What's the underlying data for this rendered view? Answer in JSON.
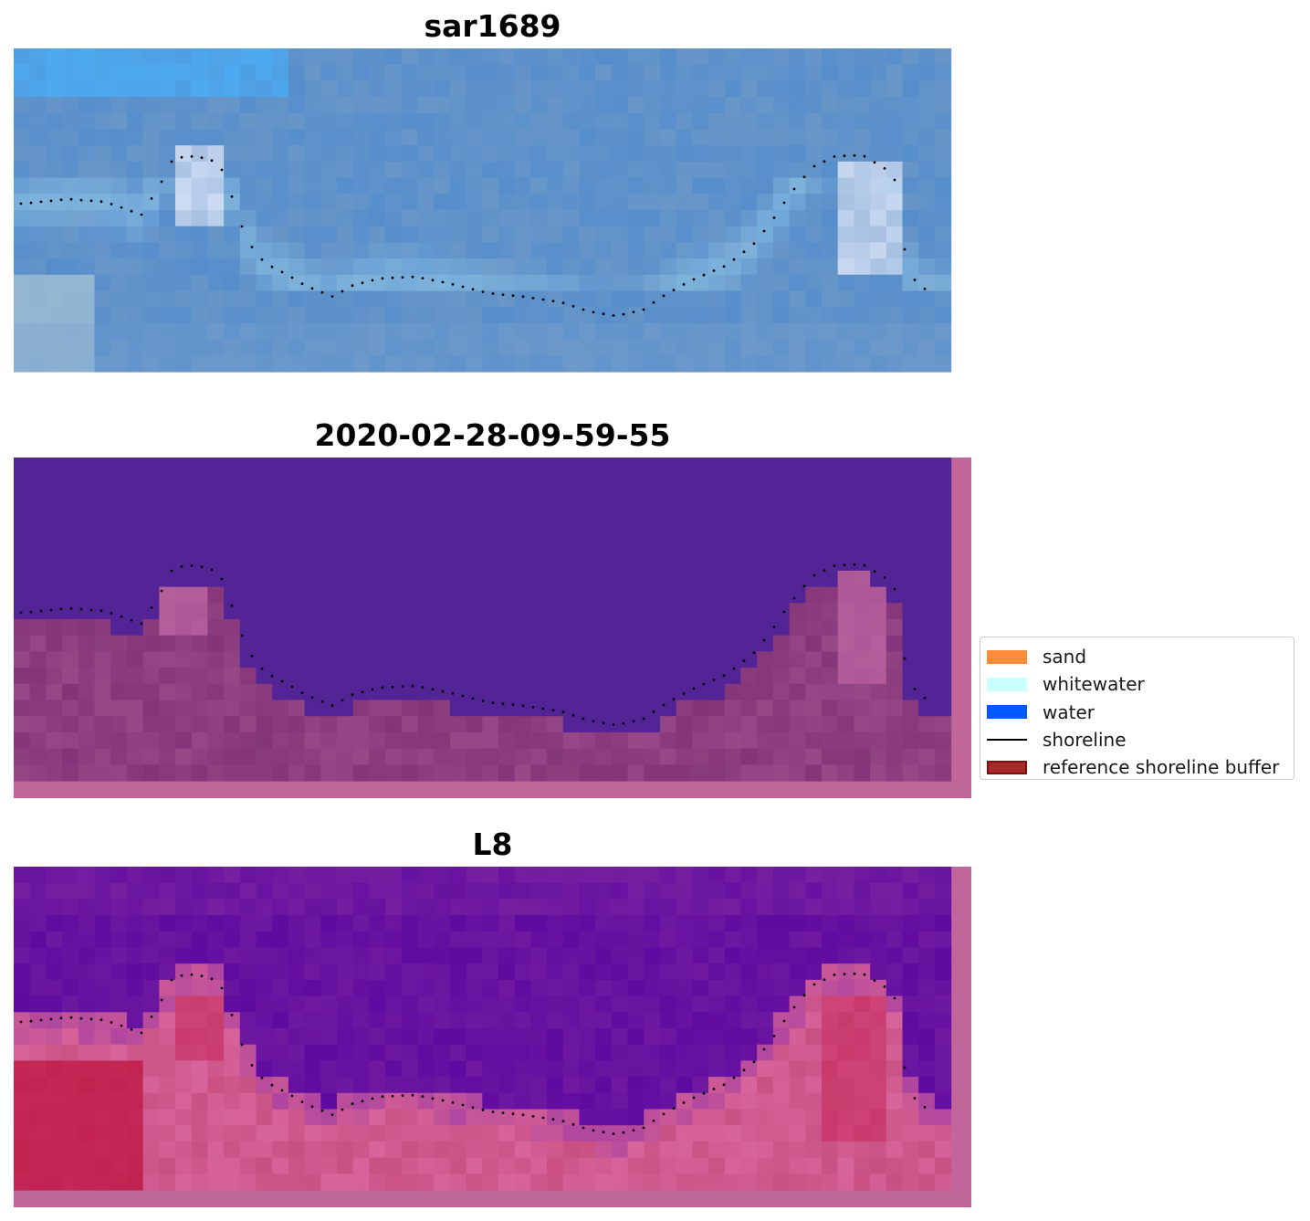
{
  "panels": [
    {
      "title": "sar1689",
      "kind": "rgb"
    },
    {
      "title": "2020-02-28-09-59-55",
      "kind": "classified"
    },
    {
      "title": "L8",
      "kind": "index"
    }
  ],
  "legend": {
    "placement": "right",
    "items": [
      {
        "label": "sand",
        "color": "#ff8c3a",
        "kind": "patch"
      },
      {
        "label": "whitewater",
        "color": "#c8ffff",
        "kind": "patch"
      },
      {
        "label": "water",
        "color": "#0059ff",
        "kind": "patch"
      },
      {
        "label": "shoreline",
        "color": "#000000",
        "kind": "line"
      },
      {
        "label": "reference shoreline buffer",
        "color": "#a52a2a",
        "kind": "patch",
        "edge": "#7a1010"
      }
    ]
  }
}
